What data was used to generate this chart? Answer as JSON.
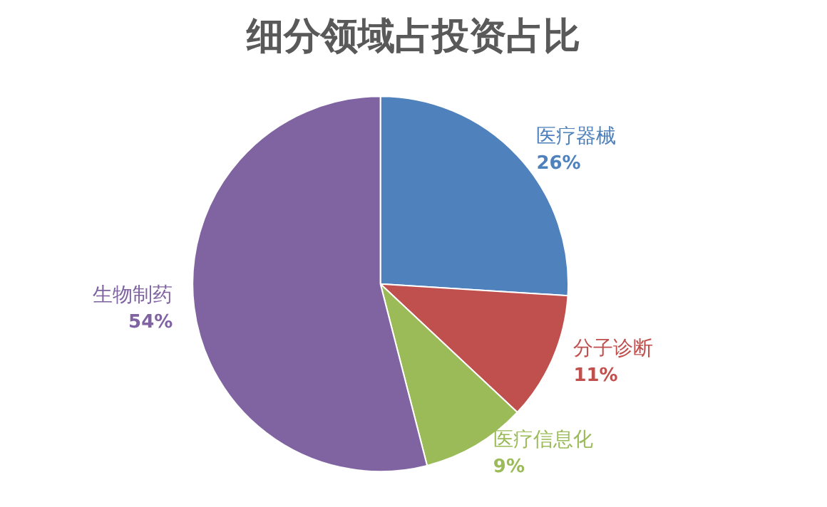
{
  "chart_data": {
    "type": "pie",
    "title": "细分领域占投资占比",
    "categories": [
      "医疗器械",
      "分子诊断",
      "医疗信息化",
      "生物制药"
    ],
    "values": [
      26,
      11,
      9,
      54
    ],
    "colors": [
      "#4f81bd",
      "#c0504d",
      "#9bbb59",
      "#8064a2"
    ],
    "value_labels": [
      "26%",
      "11%",
      "9%",
      "54%"
    ],
    "legend": false
  }
}
